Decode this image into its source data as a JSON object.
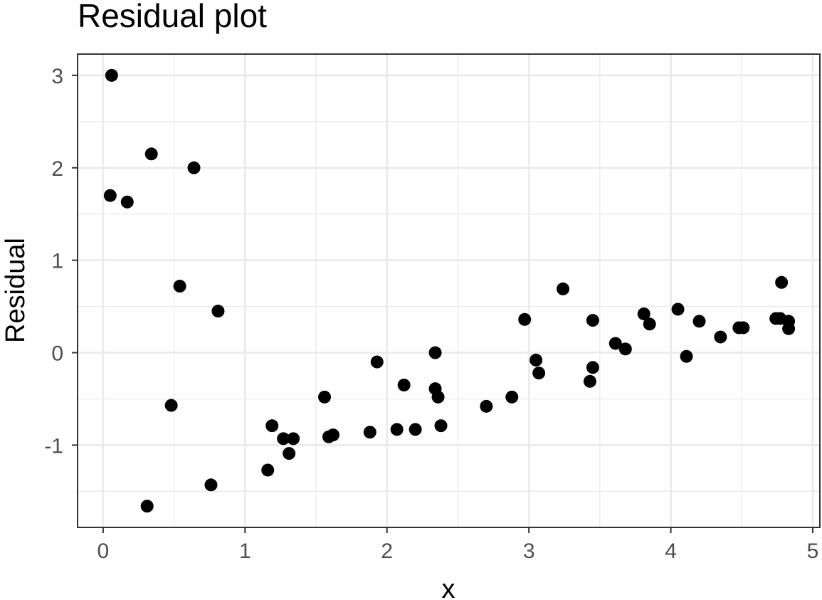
{
  "chart_data": {
    "type": "scatter",
    "title": "Residual plot",
    "xlabel": "x",
    "ylabel": "Residual",
    "xlim": [
      -0.18,
      5.05
    ],
    "ylim": [
      -1.89,
      3.23
    ],
    "xticks": [
      0,
      1,
      2,
      3,
      4,
      5
    ],
    "xtick_labels": [
      "0",
      "1",
      "2",
      "3",
      "4",
      "5"
    ],
    "yticks": [
      -1,
      0,
      1,
      2,
      3
    ],
    "ytick_labels": [
      "-1",
      "0",
      "1",
      "2",
      "3"
    ],
    "x_minor": [
      0.5,
      1.5,
      2.5,
      3.5,
      4.5
    ],
    "y_minor": [
      -1.5,
      -0.5,
      0.5,
      1.5,
      2.5
    ],
    "grid": true,
    "colors": {
      "points": "#000000",
      "grid": "#ebebeb",
      "border": "#333333"
    },
    "points": [
      {
        "x": 0.06,
        "y": 3.0
      },
      {
        "x": 0.05,
        "y": 1.7
      },
      {
        "x": 0.17,
        "y": 1.63
      },
      {
        "x": 0.31,
        "y": -1.66
      },
      {
        "x": 0.34,
        "y": 2.15
      },
      {
        "x": 0.48,
        "y": -0.57
      },
      {
        "x": 0.54,
        "y": 0.72
      },
      {
        "x": 0.64,
        "y": 2.0
      },
      {
        "x": 0.76,
        "y": -1.43
      },
      {
        "x": 0.81,
        "y": 0.45
      },
      {
        "x": 1.16,
        "y": -1.27
      },
      {
        "x": 1.19,
        "y": -0.79
      },
      {
        "x": 1.27,
        "y": -0.93
      },
      {
        "x": 1.31,
        "y": -1.09
      },
      {
        "x": 1.34,
        "y": -0.93
      },
      {
        "x": 1.56,
        "y": -0.48
      },
      {
        "x": 1.59,
        "y": -0.91
      },
      {
        "x": 1.62,
        "y": -0.89
      },
      {
        "x": 1.88,
        "y": -0.86
      },
      {
        "x": 1.93,
        "y": -0.1
      },
      {
        "x": 2.07,
        "y": -0.83
      },
      {
        "x": 2.12,
        "y": -0.35
      },
      {
        "x": 2.2,
        "y": -0.83
      },
      {
        "x": 2.34,
        "y": 0.0
      },
      {
        "x": 2.34,
        "y": -0.39
      },
      {
        "x": 2.36,
        "y": -0.48
      },
      {
        "x": 2.38,
        "y": -0.79
      },
      {
        "x": 2.7,
        "y": -0.58
      },
      {
        "x": 2.88,
        "y": -0.48
      },
      {
        "x": 2.97,
        "y": 0.36
      },
      {
        "x": 3.05,
        "y": -0.08
      },
      {
        "x": 3.07,
        "y": -0.22
      },
      {
        "x": 3.24,
        "y": 0.69
      },
      {
        "x": 3.43,
        "y": -0.31
      },
      {
        "x": 3.45,
        "y": -0.16
      },
      {
        "x": 3.45,
        "y": 0.35
      },
      {
        "x": 3.61,
        "y": 0.1
      },
      {
        "x": 3.68,
        "y": 0.04
      },
      {
        "x": 3.81,
        "y": 0.42
      },
      {
        "x": 3.85,
        "y": 0.31
      },
      {
        "x": 4.05,
        "y": 0.47
      },
      {
        "x": 4.11,
        "y": -0.04
      },
      {
        "x": 4.2,
        "y": 0.34
      },
      {
        "x": 4.35,
        "y": 0.17
      },
      {
        "x": 4.48,
        "y": 0.27
      },
      {
        "x": 4.51,
        "y": 0.27
      },
      {
        "x": 4.74,
        "y": 0.37
      },
      {
        "x": 4.77,
        "y": 0.37
      },
      {
        "x": 4.78,
        "y": 0.76
      },
      {
        "x": 4.83,
        "y": 0.34
      },
      {
        "x": 4.83,
        "y": 0.26
      }
    ]
  }
}
